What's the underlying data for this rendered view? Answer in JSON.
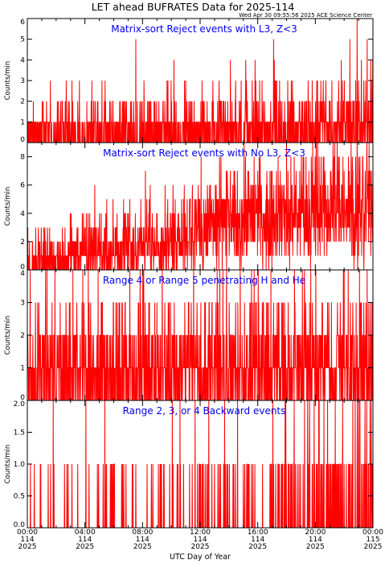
{
  "chart_data": {
    "title": "LET ahead BUFRATES Data for 2025-114",
    "timestamp": "Wed Apr 30 09:55:56 2025 ACE Science Center",
    "xlabel": "UTC Day of Year",
    "x_range_hours": [
      0,
      24
    ],
    "x_ticks": [
      {
        "hour": 0,
        "time": "00:00",
        "doy": "114",
        "year": "2025"
      },
      {
        "hour": 4,
        "time": "04:00",
        "doy": "114",
        "year": "2025"
      },
      {
        "hour": 8,
        "time": "08:00",
        "doy": "114",
        "year": "2025"
      },
      {
        "hour": 12,
        "time": "12:00",
        "doy": "114",
        "year": "2025"
      },
      {
        "hour": 16,
        "time": "16:00",
        "doy": "114",
        "year": "2025"
      },
      {
        "hour": 20,
        "time": "20:00",
        "doy": "114",
        "year": "2025"
      },
      {
        "hour": 24,
        "time": "00:00",
        "doy": "115",
        "year": "2025"
      }
    ],
    "line_color": "#ff0000",
    "panels": [
      {
        "type": "line",
        "label": "Matrix-sort Reject events with L3, Z<3",
        "ylabel": "Counts/min",
        "ylim": [
          0,
          6
        ],
        "yticks": [
          "0",
          "1",
          "2",
          "3",
          "4",
          "5",
          "6"
        ],
        "trend": [
          [
            0,
            0.55
          ],
          [
            12,
            0.62
          ],
          [
            24,
            0.9
          ]
        ],
        "spikes": [
          [
            1.6,
            3
          ],
          [
            2.7,
            3
          ],
          [
            5.4,
            3
          ],
          [
            9.7,
            3
          ],
          [
            11.0,
            3
          ],
          [
            14.1,
            4
          ],
          [
            16.3,
            3
          ],
          [
            17.1,
            5
          ],
          [
            20.1,
            3
          ],
          [
            21.8,
            4
          ],
          [
            22.4,
            5
          ],
          [
            22.9,
            6
          ],
          [
            23.2,
            4
          ],
          [
            23.6,
            5
          ],
          [
            23.85,
            4
          ]
        ]
      },
      {
        "type": "line",
        "label": "Matrix-sort Reject events with No L3, Z<3",
        "ylabel": "Counts/min",
        "ylim": [
          0,
          9
        ],
        "yticks": [
          "0",
          "2",
          "4",
          "6",
          "8"
        ],
        "trend": [
          [
            0,
            0.6
          ],
          [
            4,
            1.3
          ],
          [
            8,
            1.9
          ],
          [
            10,
            2.2
          ],
          [
            11.2,
            2.6
          ],
          [
            12,
            3.0
          ],
          [
            14,
            3.3
          ],
          [
            16,
            3.6
          ],
          [
            18,
            4.0
          ],
          [
            20,
            4.3
          ],
          [
            22,
            4.4
          ],
          [
            24,
            4.6
          ]
        ],
        "spikes": [
          [
            1.7,
            2
          ],
          [
            3.7,
            2
          ],
          [
            6.2,
            3
          ],
          [
            8.4,
            3
          ],
          [
            9.3,
            3
          ],
          [
            10.5,
            4
          ],
          [
            12.8,
            5
          ],
          [
            14.4,
            7
          ],
          [
            16.1,
            8
          ],
          [
            17.3,
            7
          ],
          [
            18.0,
            9
          ],
          [
            19.2,
            8
          ],
          [
            20.4,
            8
          ],
          [
            21.3,
            8
          ],
          [
            22.3,
            8
          ],
          [
            23.3,
            8
          ],
          [
            23.8,
            7
          ]
        ]
      },
      {
        "type": "line",
        "label": "Range 4 or Range 5 penetrating H and He",
        "ylabel": "Counts/min",
        "ylim": [
          0,
          4
        ],
        "yticks": [
          "0",
          "1",
          "2",
          "3",
          "4"
        ],
        "trend": [
          [
            0,
            1.05
          ],
          [
            24,
            1.1
          ]
        ],
        "spikes": [
          [
            3.8,
            3
          ],
          [
            6.8,
            3
          ],
          [
            7.7,
            3
          ],
          [
            10.2,
            3
          ],
          [
            11.2,
            3
          ],
          [
            11.55,
            4
          ],
          [
            13.1,
            3
          ],
          [
            17.1,
            3
          ],
          [
            19.6,
            3
          ],
          [
            20.5,
            3
          ],
          [
            23.1,
            3
          ],
          [
            23.85,
            3
          ]
        ]
      },
      {
        "type": "line",
        "label": "Range 2, 3, or 4 Backward events",
        "ylabel": "Counts/min",
        "ylim": [
          0,
          2
        ],
        "yticks": [
          "0.0",
          "0.5",
          "1.0",
          "1.5",
          "2.0"
        ],
        "trend": [
          [
            0,
            0.06
          ],
          [
            8,
            0.09
          ],
          [
            12,
            0.13
          ],
          [
            16,
            0.2
          ],
          [
            20,
            0.3
          ],
          [
            24,
            0.34
          ]
        ],
        "spikes": [
          [
            10.6,
            2
          ],
          [
            11.65,
            2
          ],
          [
            12.6,
            2
          ],
          [
            13.7,
            2
          ],
          [
            14.6,
            2
          ],
          [
            17.9,
            2
          ],
          [
            19.6,
            2
          ],
          [
            20.6,
            2
          ],
          [
            21.9,
            2
          ],
          [
            22.6,
            2
          ],
          [
            23.1,
            2
          ],
          [
            23.8,
            2
          ]
        ]
      }
    ]
  }
}
